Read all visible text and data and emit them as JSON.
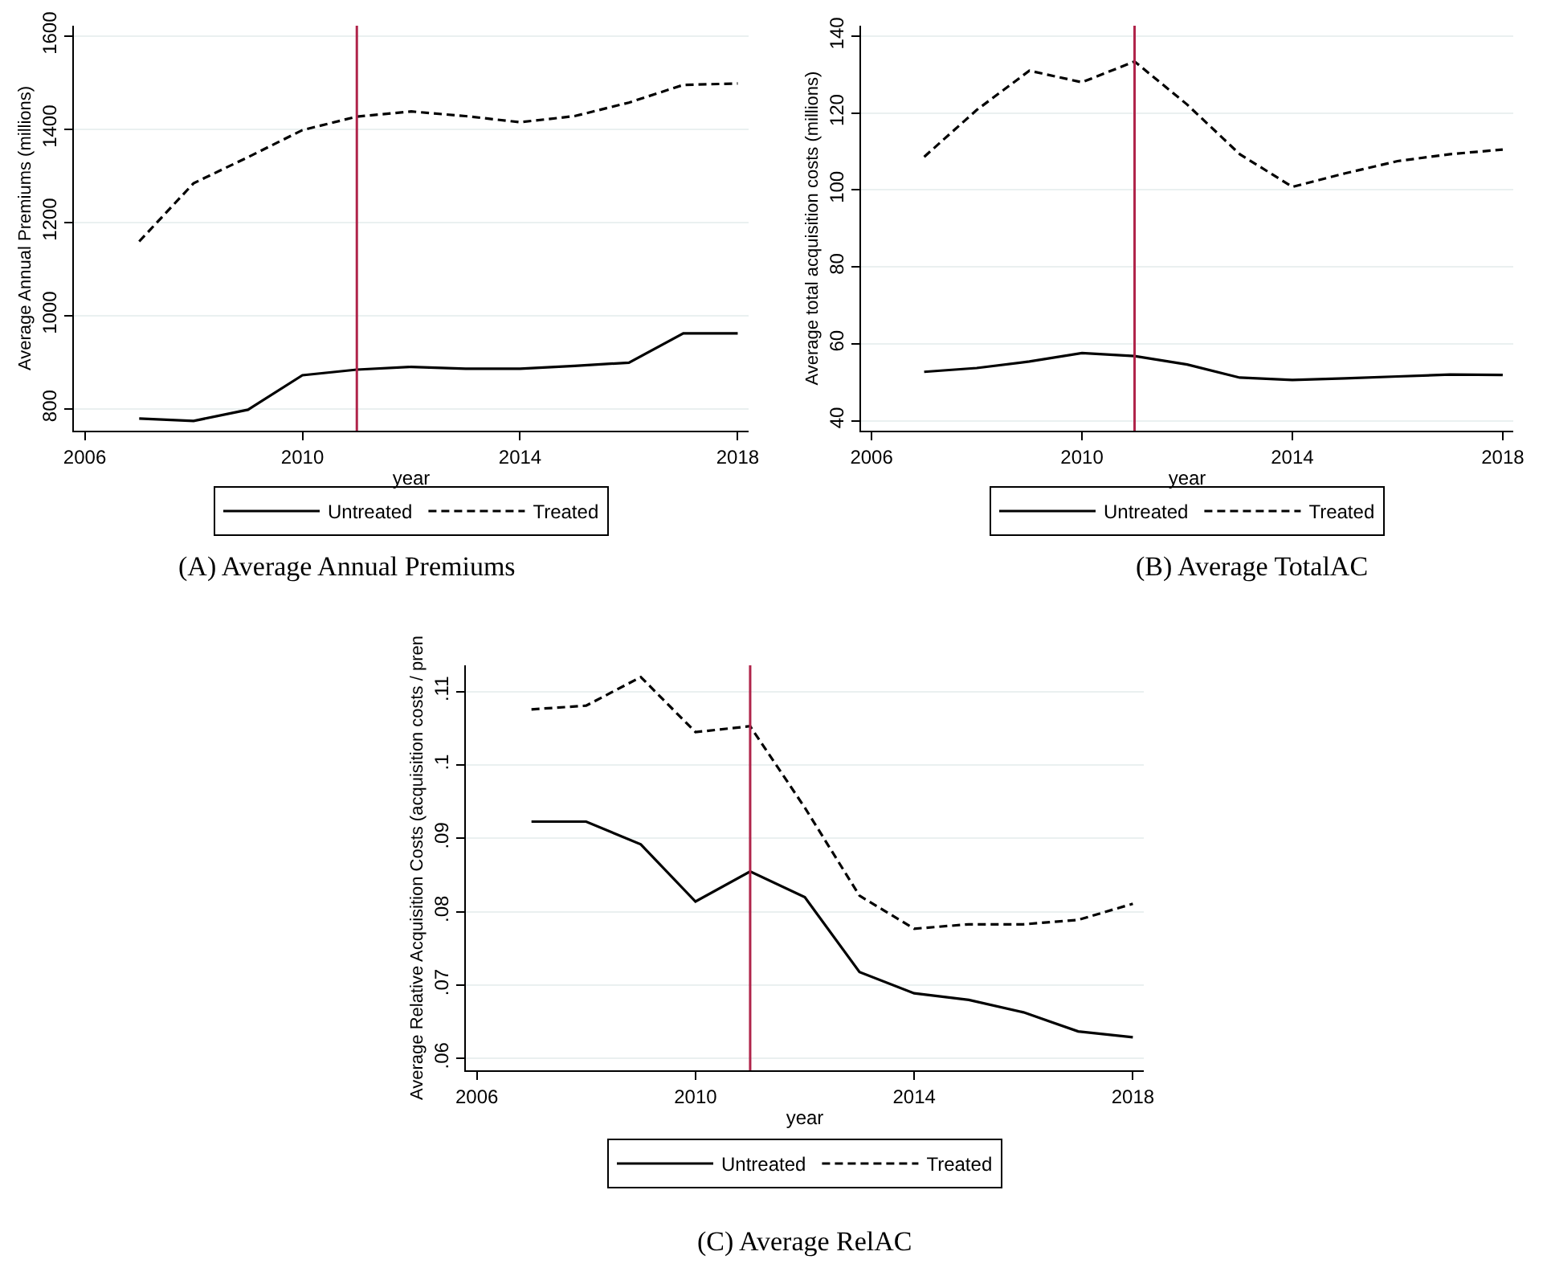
{
  "chart_data": [
    {
      "type": "line",
      "title": "(A) Average Annual Premiums",
      "xlabel": "year",
      "ylabel": "Average Annual Premiums (millions)",
      "x": [
        2007,
        2008,
        2009,
        2010,
        2011,
        2012,
        2013,
        2014,
        2015,
        2016,
        2017,
        2018
      ],
      "series": [
        {
          "name": "Untreated",
          "color": "#000000",
          "line_style": "solid",
          "values": [
            779,
            774,
            798,
            872,
            884,
            890,
            886,
            886,
            892,
            899,
            962,
            962
          ]
        },
        {
          "name": "Treated",
          "color": "#000000",
          "line_style": "dashed",
          "values": [
            1159,
            1284,
            1340,
            1398,
            1427,
            1438,
            1428,
            1415,
            1428,
            1457,
            1495,
            1498
          ]
        }
      ],
      "xlim": [
        2005.8,
        2018.2
      ],
      "xticks": [
        2006,
        2010,
        2014,
        2018
      ],
      "ylim": [
        753,
        1622
      ],
      "yticks": [
        800,
        1000,
        1200,
        1400,
        1600
      ],
      "ref_lines": [
        {
          "axis": "x",
          "value": 2011,
          "color": "#b0244a"
        }
      ],
      "grid": "y",
      "legend": "bottom"
    },
    {
      "type": "line",
      "title": "(B) Average TotalAC",
      "xlabel": "year",
      "ylabel": "Average total acquisition costs (millions)",
      "x": [
        2007,
        2008,
        2009,
        2010,
        2011,
        2012,
        2013,
        2014,
        2015,
        2016,
        2017,
        2018
      ],
      "series": [
        {
          "name": "Untreated",
          "color": "#000000",
          "line_style": "solid",
          "values": [
            52.7,
            53.7,
            55.4,
            57.6,
            56.8,
            54.6,
            51.2,
            50.6,
            51.0,
            51.5,
            52.0,
            51.9
          ]
        },
        {
          "name": "Treated",
          "color": "#000000",
          "line_style": "dashed",
          "values": [
            108.6,
            120.8,
            131.0,
            128.0,
            133.4,
            122.2,
            109.3,
            100.8,
            104.3,
            107.5,
            109.3,
            110.5
          ]
        }
      ],
      "xlim": [
        2005.8,
        2018.2
      ],
      "xticks": [
        2006,
        2010,
        2014,
        2018
      ],
      "ylim": [
        37.4,
        142.7
      ],
      "yticks": [
        40,
        60,
        80,
        100,
        120,
        140
      ],
      "ref_lines": [
        {
          "axis": "x",
          "value": 2011,
          "color": "#b0244a"
        }
      ],
      "grid": "y",
      "legend": "bottom"
    },
    {
      "type": "line",
      "title": "(C) Average RelAC",
      "xlabel": "year",
      "ylabel": "Average Relative Acquisition Costs (acquisition costs / pren",
      "x": [
        2007,
        2008,
        2009,
        2010,
        2011,
        2012,
        2013,
        2014,
        2015,
        2016,
        2017,
        2018
      ],
      "series": [
        {
          "name": "Untreated",
          "color": "#000000",
          "line_style": "solid",
          "values": [
            0.0923,
            0.0923,
            0.0892,
            0.0814,
            0.0855,
            0.082,
            0.0718,
            0.0689,
            0.068,
            0.0663,
            0.0637,
            0.0629
          ]
        },
        {
          "name": "Treated",
          "color": "#000000",
          "line_style": "dashed",
          "values": [
            0.1076,
            0.1081,
            0.112,
            0.1045,
            0.1053,
            0.0942,
            0.0822,
            0.0777,
            0.0783,
            0.0783,
            0.0789,
            0.0811
          ]
        }
      ],
      "xlim": [
        2005.8,
        2018.2
      ],
      "xticks": [
        2006,
        2010,
        2014,
        2018
      ],
      "ylim": [
        0.0584,
        0.1136
      ],
      "yticks": [
        {
          "value": 0.06,
          "label": ".06"
        },
        {
          "value": 0.07,
          "label": ".07"
        },
        {
          "value": 0.08,
          "label": ".08"
        },
        {
          "value": 0.09,
          "label": ".09"
        },
        {
          "value": 0.1,
          "label": ".1"
        },
        {
          "value": 0.11,
          "label": ".11"
        }
      ],
      "ref_lines": [
        {
          "axis": "x",
          "value": 2011,
          "color": "#b0244a"
        }
      ],
      "grid": "y",
      "legend": "bottom"
    }
  ]
}
